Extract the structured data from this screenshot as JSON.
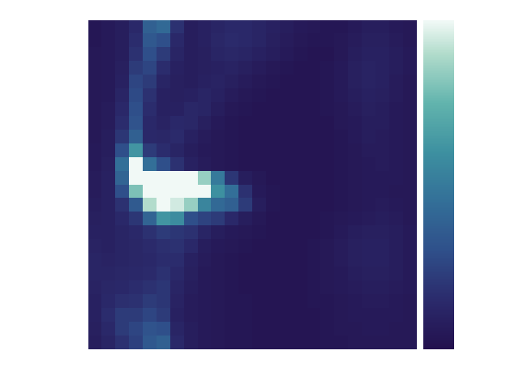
{
  "chart_data": {
    "type": "heatmap",
    "tick_labels": false,
    "colorbar": {
      "range": [
        0,
        100
      ]
    },
    "cells": [
      [
        4,
        6,
        8,
        14,
        38,
        42,
        18,
        8,
        10,
        12,
        14,
        14,
        12,
        10,
        8,
        6,
        5,
        4,
        4,
        6,
        8,
        8,
        6,
        5
      ],
      [
        4,
        6,
        8,
        16,
        34,
        30,
        14,
        8,
        10,
        13,
        15,
        14,
        12,
        9,
        7,
        5,
        4,
        4,
        5,
        7,
        9,
        9,
        7,
        5
      ],
      [
        5,
        6,
        8,
        18,
        30,
        22,
        12,
        8,
        9,
        12,
        13,
        12,
        10,
        8,
        6,
        4,
        3,
        3,
        5,
        8,
        10,
        10,
        8,
        6
      ],
      [
        5,
        6,
        9,
        22,
        26,
        16,
        10,
        8,
        9,
        10,
        11,
        9,
        7,
        5,
        4,
        3,
        3,
        4,
        6,
        9,
        11,
        10,
        8,
        6
      ],
      [
        5,
        6,
        10,
        26,
        22,
        12,
        9,
        8,
        10,
        11,
        9,
        7,
        5,
        4,
        3,
        3,
        3,
        4,
        6,
        9,
        11,
        10,
        7,
        5
      ],
      [
        5,
        6,
        12,
        28,
        18,
        10,
        9,
        10,
        12,
        10,
        7,
        5,
        4,
        3,
        3,
        3,
        3,
        4,
        6,
        8,
        10,
        9,
        7,
        5
      ],
      [
        5,
        7,
        14,
        30,
        16,
        10,
        10,
        13,
        12,
        8,
        5,
        4,
        3,
        3,
        3,
        3,
        3,
        4,
        5,
        7,
        9,
        8,
        6,
        5
      ],
      [
        5,
        7,
        16,
        32,
        14,
        11,
        14,
        13,
        9,
        6,
        4,
        3,
        3,
        3,
        3,
        3,
        3,
        3,
        5,
        6,
        8,
        8,
        6,
        5
      ],
      [
        5,
        8,
        20,
        38,
        14,
        13,
        15,
        10,
        7,
        5,
        4,
        3,
        3,
        3,
        3,
        3,
        3,
        3,
        4,
        6,
        8,
        7,
        6,
        5
      ],
      [
        6,
        8,
        30,
        62,
        22,
        16,
        12,
        8,
        6,
        5,
        4,
        3,
        3,
        3,
        3,
        3,
        3,
        3,
        4,
        5,
        7,
        7,
        6,
        5
      ],
      [
        6,
        9,
        45,
        100,
        45,
        30,
        18,
        10,
        7,
        5,
        4,
        3,
        3,
        3,
        3,
        3,
        3,
        3,
        4,
        5,
        6,
        7,
        6,
        5
      ],
      [
        7,
        10,
        40,
        100,
        100,
        100,
        100,
        100,
        85,
        50,
        20,
        8,
        5,
        3,
        3,
        3,
        3,
        3,
        4,
        5,
        6,
        6,
        6,
        5
      ],
      [
        7,
        10,
        30,
        80,
        100,
        100,
        100,
        100,
        100,
        60,
        45,
        18,
        6,
        4,
        3,
        3,
        3,
        3,
        4,
        5,
        6,
        6,
        5,
        5
      ],
      [
        8,
        10,
        18,
        35,
        90,
        100,
        95,
        85,
        55,
        42,
        38,
        22,
        8,
        4,
        3,
        3,
        3,
        3,
        4,
        5,
        6,
        7,
        6,
        5
      ],
      [
        9,
        10,
        14,
        20,
        40,
        62,
        58,
        30,
        25,
        22,
        14,
        8,
        5,
        3,
        3,
        3,
        3,
        4,
        5,
        6,
        7,
        8,
        7,
        5
      ],
      [
        10,
        10,
        12,
        14,
        18,
        22,
        20,
        18,
        12,
        8,
        6,
        5,
        4,
        3,
        3,
        3,
        3,
        4,
        6,
        8,
        9,
        9,
        8,
        6
      ],
      [
        11,
        10,
        12,
        13,
        15,
        17,
        18,
        14,
        8,
        6,
        5,
        4,
        3,
        3,
        3,
        3,
        4,
        5,
        7,
        9,
        10,
        10,
        8,
        6
      ],
      [
        12,
        11,
        12,
        13,
        14,
        16,
        16,
        10,
        7,
        5,
        4,
        3,
        3,
        3,
        3,
        3,
        4,
        5,
        7,
        9,
        10,
        10,
        8,
        6
      ],
      [
        12,
        12,
        13,
        14,
        15,
        18,
        14,
        9,
        6,
        5,
        4,
        3,
        3,
        3,
        3,
        3,
        4,
        5,
        6,
        8,
        9,
        9,
        8,
        6
      ],
      [
        11,
        13,
        14,
        16,
        18,
        20,
        12,
        8,
        6,
        5,
        4,
        3,
        3,
        3,
        3,
        3,
        4,
        5,
        6,
        7,
        8,
        8,
        7,
        6
      ],
      [
        10,
        14,
        17,
        18,
        22,
        20,
        11,
        7,
        6,
        5,
        4,
        4,
        3,
        3,
        3,
        3,
        4,
        4,
        5,
        6,
        7,
        7,
        6,
        5
      ],
      [
        10,
        16,
        22,
        22,
        26,
        22,
        10,
        7,
        6,
        5,
        4,
        4,
        3,
        3,
        3,
        3,
        3,
        4,
        5,
        6,
        6,
        6,
        6,
        5
      ],
      [
        9,
        14,
        22,
        26,
        32,
        30,
        12,
        8,
        6,
        5,
        4,
        4,
        3,
        3,
        3,
        3,
        3,
        4,
        5,
        5,
        6,
        6,
        5,
        5
      ],
      [
        8,
        12,
        18,
        24,
        34,
        38,
        14,
        8,
        6,
        5,
        4,
        4,
        3,
        3,
        3,
        3,
        3,
        4,
        4,
        5,
        5,
        5,
        5,
        5
      ]
    ]
  }
}
